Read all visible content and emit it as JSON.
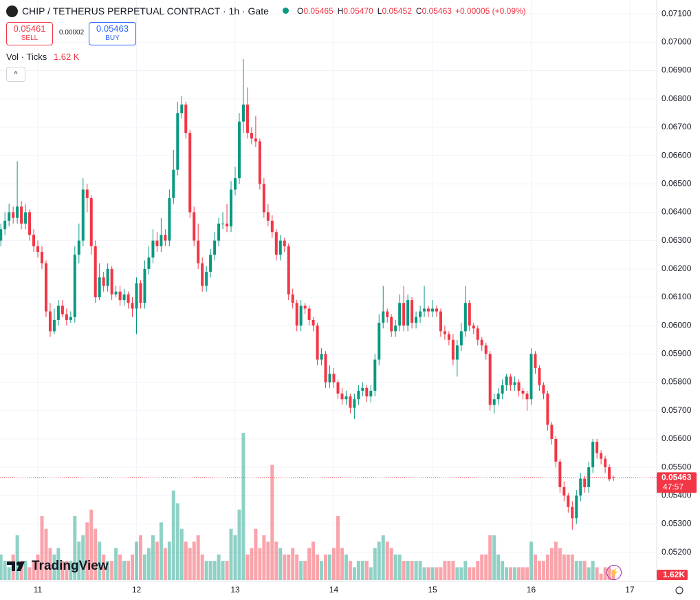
{
  "chart_data": {
    "type": "candlestick",
    "title": "CHIP / TETHERUS PERPETUAL CONTRACT · 1h · Gate",
    "legend": [
      {
        "key": "O",
        "value": "0.05465"
      },
      {
        "key": "H",
        "value": "0.05470"
      },
      {
        "key": "L",
        "value": "0.05452"
      },
      {
        "key": "C",
        "value": "0.05463"
      }
    ],
    "change": "+0.00005 (+0.09%)",
    "trade": {
      "sell_price": "0.05461",
      "sell_label": "SELL",
      "spread": "0.00002",
      "buy_price": "0.05463",
      "buy_label": "BUY"
    },
    "volume_indicator": {
      "label": "Vol · Ticks",
      "value": "1.62 K"
    },
    "last_price": {
      "value": 0.05463,
      "label": "0.05463",
      "countdown": "47:57"
    },
    "last_volume_label": "1.62K",
    "brand": "TradingView",
    "colors": {
      "up": "#089981",
      "down": "#f23645"
    },
    "grid": true,
    "ylim": [
      0.05102,
      0.07149
    ],
    "yticks": [
      {
        "value": 0.052,
        "label": "0.05200"
      },
      {
        "value": 0.053,
        "label": "0.05300"
      },
      {
        "value": 0.054,
        "label": "0.05400"
      },
      {
        "value": 0.055,
        "label": "0.05500"
      },
      {
        "value": 0.056,
        "label": "0.05600"
      },
      {
        "value": 0.057,
        "label": "0.05700"
      },
      {
        "value": 0.058,
        "label": "0.05800"
      },
      {
        "value": 0.059,
        "label": "0.05900"
      },
      {
        "value": 0.06,
        "label": "0.06000"
      },
      {
        "value": 0.061,
        "label": "0.06100"
      },
      {
        "value": 0.062,
        "label": "0.06200"
      },
      {
        "value": 0.063,
        "label": "0.06300"
      },
      {
        "value": 0.064,
        "label": "0.06400"
      },
      {
        "value": 0.065,
        "label": "0.06500"
      },
      {
        "value": 0.066,
        "label": "0.06600"
      },
      {
        "value": 0.067,
        "label": "0.06700"
      },
      {
        "value": 0.068,
        "label": "0.06800"
      },
      {
        "value": 0.069,
        "label": "0.06900"
      },
      {
        "value": 0.07,
        "label": "0.07000"
      },
      {
        "value": 0.071,
        "label": "0.07100"
      }
    ],
    "xticks": [
      {
        "value": 9,
        "label": "11"
      },
      {
        "value": 33,
        "label": "12"
      },
      {
        "value": 57,
        "label": "13"
      },
      {
        "value": 81,
        "label": "14"
      },
      {
        "value": 105,
        "label": "15"
      },
      {
        "value": 129,
        "label": "16"
      },
      {
        "value": 153,
        "label": "17"
      }
    ],
    "open": [
      0.063,
      0.0634,
      0.0637,
      0.064,
      0.0638,
      0.0642,
      0.0636,
      0.064,
      0.0632,
      0.0628,
      0.0626,
      0.0622,
      0.0605,
      0.0598,
      0.0602,
      0.0607,
      0.0604,
      0.0602,
      0.0603,
      0.0625,
      0.063,
      0.0648,
      0.0645,
      0.0628,
      0.061,
      0.0617,
      0.0614,
      0.062,
      0.0611,
      0.0612,
      0.0609,
      0.0611,
      0.0608,
      0.0606,
      0.0615,
      0.0608,
      0.062,
      0.0624,
      0.063,
      0.0628,
      0.0632,
      0.063,
      0.0645,
      0.0655,
      0.0675,
      0.0678,
      0.0668,
      0.064,
      0.063,
      0.0622,
      0.0614,
      0.0619,
      0.0625,
      0.063,
      0.0636,
      0.0636,
      0.0635,
      0.0648,
      0.0652,
      0.0672,
      0.0678,
      0.0668,
      0.0666,
      0.0665,
      0.065,
      0.064,
      0.0637,
      0.0633,
      0.0625,
      0.063,
      0.0628,
      0.0611,
      0.0608,
      0.06,
      0.0607,
      0.0606,
      0.0602,
      0.06,
      0.0588,
      0.059,
      0.058,
      0.0583,
      0.058,
      0.0576,
      0.0574,
      0.0575,
      0.0571,
      0.0574,
      0.0577,
      0.0578,
      0.0575,
      0.0577,
      0.0588,
      0.0601,
      0.0605,
      0.0603,
      0.0598,
      0.06,
      0.0608,
      0.06,
      0.0609,
      0.0601,
      0.0603,
      0.0605,
      0.0606,
      0.0605,
      0.0606,
      0.0605,
      0.0598,
      0.0597,
      0.0595,
      0.0588,
      0.0593,
      0.0598,
      0.0608,
      0.06,
      0.0599,
      0.0595,
      0.0593,
      0.059,
      0.0572,
      0.0574,
      0.0576,
      0.0579,
      0.0582,
      0.0579,
      0.058,
      0.0577,
      0.0576,
      0.0574,
      0.059,
      0.0585,
      0.0579,
      0.0576,
      0.0565,
      0.056,
      0.0552,
      0.0543,
      0.054,
      0.0536,
      0.0532,
      0.054,
      0.0546,
      0.0543,
      0.055,
      0.0559,
      0.0555,
      0.0553,
      0.055,
      0.05465
    ],
    "high": [
      0.0636,
      0.064,
      0.0643,
      0.0642,
      0.0658,
      0.0644,
      0.0643,
      0.0641,
      0.0634,
      0.063,
      0.0628,
      0.0623,
      0.0608,
      0.0606,
      0.0609,
      0.0609,
      0.0606,
      0.0605,
      0.0628,
      0.0636,
      0.0652,
      0.065,
      0.0646,
      0.063,
      0.0622,
      0.0619,
      0.0622,
      0.0621,
      0.0614,
      0.0614,
      0.0613,
      0.0612,
      0.061,
      0.0617,
      0.0616,
      0.0623,
      0.0628,
      0.0634,
      0.0633,
      0.0638,
      0.0634,
      0.0648,
      0.0662,
      0.0679,
      0.0681,
      0.0679,
      0.0669,
      0.0642,
      0.0636,
      0.0624,
      0.0621,
      0.0627,
      0.0633,
      0.0638,
      0.064,
      0.0643,
      0.0651,
      0.0656,
      0.0675,
      0.0694,
      0.0684,
      0.067,
      0.0674,
      0.0666,
      0.0652,
      0.0643,
      0.0639,
      0.0634,
      0.0632,
      0.0631,
      0.0629,
      0.0613,
      0.0609,
      0.0609,
      0.0608,
      0.0607,
      0.0603,
      0.0601,
      0.0592,
      0.0591,
      0.0586,
      0.0585,
      0.0581,
      0.0578,
      0.0577,
      0.0576,
      0.0576,
      0.0579,
      0.058,
      0.0579,
      0.0579,
      0.059,
      0.0604,
      0.0614,
      0.0606,
      0.0604,
      0.0602,
      0.0611,
      0.0614,
      0.0611,
      0.061,
      0.0605,
      0.0607,
      0.0614,
      0.0607,
      0.0609,
      0.0607,
      0.0606,
      0.06,
      0.0598,
      0.0597,
      0.0595,
      0.0601,
      0.0614,
      0.0609,
      0.0601,
      0.06,
      0.0596,
      0.0594,
      0.0591,
      0.0576,
      0.0578,
      0.0581,
      0.0583,
      0.0583,
      0.0582,
      0.0581,
      0.0578,
      0.0577,
      0.0592,
      0.0591,
      0.0586,
      0.058,
      0.0577,
      0.0566,
      0.0561,
      0.0553,
      0.0545,
      0.0541,
      0.0538,
      0.0542,
      0.0548,
      0.0547,
      0.0552,
      0.056,
      0.056,
      0.0556,
      0.0554,
      0.0551,
      0.0547
    ],
    "low": [
      0.0628,
      0.0632,
      0.0635,
      0.0636,
      0.0636,
      0.0634,
      0.0634,
      0.063,
      0.0626,
      0.0624,
      0.062,
      0.0603,
      0.0596,
      0.0597,
      0.06,
      0.0603,
      0.06,
      0.0601,
      0.0601,
      0.0622,
      0.0628,
      0.064,
      0.0625,
      0.0608,
      0.0609,
      0.0612,
      0.0612,
      0.0609,
      0.061,
      0.0607,
      0.0607,
      0.0606,
      0.0603,
      0.0597,
      0.0606,
      0.0606,
      0.0618,
      0.0622,
      0.0626,
      0.0626,
      0.0628,
      0.0628,
      0.0643,
      0.0653,
      0.0673,
      0.0666,
      0.0638,
      0.0628,
      0.062,
      0.0612,
      0.0612,
      0.0617,
      0.0623,
      0.0628,
      0.0634,
      0.0633,
      0.0633,
      0.0646,
      0.065,
      0.0668,
      0.0666,
      0.0664,
      0.0663,
      0.0648,
      0.0638,
      0.0635,
      0.0631,
      0.0623,
      0.0623,
      0.0626,
      0.0609,
      0.0606,
      0.0598,
      0.0598,
      0.0604,
      0.06,
      0.0598,
      0.0586,
      0.0586,
      0.0578,
      0.0578,
      0.0578,
      0.0574,
      0.0572,
      0.0572,
      0.0569,
      0.0567,
      0.0572,
      0.0575,
      0.0573,
      0.0573,
      0.0575,
      0.0586,
      0.0599,
      0.0601,
      0.0596,
      0.0596,
      0.0598,
      0.0598,
      0.0598,
      0.0599,
      0.0599,
      0.0601,
      0.0603,
      0.0603,
      0.0603,
      0.0603,
      0.0596,
      0.0595,
      0.0593,
      0.0586,
      0.0582,
      0.0591,
      0.0596,
      0.0598,
      0.0597,
      0.0593,
      0.0591,
      0.0588,
      0.057,
      0.0569,
      0.0572,
      0.0574,
      0.0577,
      0.0577,
      0.0577,
      0.0575,
      0.0574,
      0.057,
      0.0572,
      0.0583,
      0.0577,
      0.0574,
      0.0563,
      0.0558,
      0.055,
      0.0541,
      0.0538,
      0.0534,
      0.0528,
      0.053,
      0.0538,
      0.0541,
      0.0541,
      0.0548,
      0.0553,
      0.0551,
      0.0548,
      0.0545,
      0.05452
    ],
    "close": [
      0.0634,
      0.0637,
      0.064,
      0.0638,
      0.0642,
      0.0636,
      0.064,
      0.0632,
      0.0628,
      0.0626,
      0.0622,
      0.0605,
      0.0598,
      0.0602,
      0.0607,
      0.0604,
      0.0602,
      0.0603,
      0.0625,
      0.063,
      0.0648,
      0.0645,
      0.0628,
      0.061,
      0.0617,
      0.0614,
      0.062,
      0.0611,
      0.0612,
      0.0609,
      0.0611,
      0.0608,
      0.0606,
      0.0615,
      0.0608,
      0.062,
      0.0624,
      0.063,
      0.0628,
      0.0632,
      0.063,
      0.0645,
      0.0655,
      0.0675,
      0.0678,
      0.0668,
      0.064,
      0.063,
      0.0622,
      0.0614,
      0.0619,
      0.0625,
      0.063,
      0.0636,
      0.0636,
      0.0635,
      0.0648,
      0.0652,
      0.0672,
      0.0678,
      0.0668,
      0.0666,
      0.0665,
      0.065,
      0.064,
      0.0637,
      0.0633,
      0.0625,
      0.063,
      0.0628,
      0.0611,
      0.0608,
      0.06,
      0.0607,
      0.0606,
      0.0602,
      0.06,
      0.0588,
      0.059,
      0.058,
      0.0583,
      0.058,
      0.0576,
      0.0574,
      0.0575,
      0.0571,
      0.0574,
      0.0577,
      0.0578,
      0.0575,
      0.0577,
      0.0588,
      0.0601,
      0.0605,
      0.0603,
      0.0598,
      0.06,
      0.0608,
      0.06,
      0.0609,
      0.0601,
      0.0603,
      0.0605,
      0.0606,
      0.0605,
      0.0606,
      0.0605,
      0.0598,
      0.0597,
      0.0595,
      0.0588,
      0.0593,
      0.0598,
      0.0608,
      0.06,
      0.0599,
      0.0595,
      0.0593,
      0.059,
      0.0572,
      0.0574,
      0.0576,
      0.0579,
      0.0582,
      0.0579,
      0.058,
      0.0577,
      0.0576,
      0.0574,
      0.059,
      0.0585,
      0.0579,
      0.0576,
      0.0565,
      0.056,
      0.0552,
      0.0543,
      0.054,
      0.0536,
      0.0532,
      0.054,
      0.0546,
      0.0543,
      0.055,
      0.0559,
      0.0555,
      0.0553,
      0.055,
      0.05458,
      0.05463
    ],
    "volume": [
      4,
      3,
      2,
      4,
      7,
      3,
      3,
      2,
      3,
      4,
      10,
      8,
      5,
      4,
      5,
      3,
      3,
      3,
      10,
      6,
      7,
      9,
      11,
      8,
      6,
      4,
      3,
      3,
      5,
      4,
      3,
      3,
      4,
      6,
      7,
      4,
      5,
      7,
      6,
      9,
      5,
      6,
      14,
      12,
      8,
      6,
      5,
      6,
      7,
      4,
      3,
      3,
      3,
      4,
      3,
      3,
      8,
      7,
      11,
      23,
      4,
      5,
      8,
      5,
      7,
      6,
      18,
      6,
      5,
      4,
      4,
      5,
      4,
      3,
      3,
      5,
      6,
      4,
      3,
      4,
      4,
      5,
      10,
      5,
      4,
      3,
      2,
      3,
      3,
      3,
      2,
      5,
      6,
      7,
      6,
      5,
      4,
      4,
      3,
      3,
      3,
      3,
      3,
      2,
      2,
      2,
      2,
      2,
      3,
      3,
      3,
      2,
      2,
      3,
      2,
      2,
      3,
      4,
      4,
      7,
      7,
      4,
      3,
      2,
      2,
      2,
      2,
      2,
      2,
      6,
      4,
      3,
      3,
      4,
      5,
      6,
      5,
      4,
      4,
      4,
      3,
      3,
      3,
      2,
      3,
      2,
      1,
      2,
      2,
      1.62
    ]
  }
}
